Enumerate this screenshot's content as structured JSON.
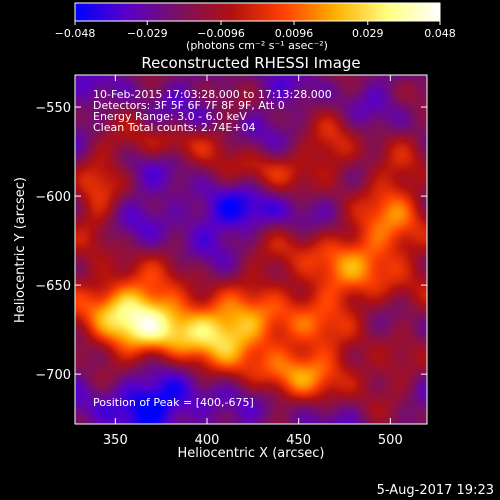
{
  "chart_data": {
    "type": "heatmap",
    "title": "Reconstructed RHESSI Image",
    "xlabel": "Heliocentric X (arcsec)",
    "ylabel": "Heliocentric Y (arcsec)",
    "xlim": [
      328,
      520
    ],
    "ylim": [
      -728,
      -532
    ],
    "x_ticks": [
      350,
      400,
      450,
      500
    ],
    "y_ticks": [
      -550,
      -600,
      -650,
      -700
    ],
    "annotations": [
      "10-Feb-2015 17:03:28.000 to 17:13:28.000",
      "Detectors: 3F 5F 6F 7F 8F 9F, Att 0",
      "Energy Range: 3.0 - 6.0 keV",
      "Clean     Total counts: 2.74E+04"
    ],
    "peak_text": "Position of Peak = [400,-675]",
    "peak": [
      400,
      -675
    ],
    "colorbar": {
      "range": [
        -0.048,
        0.048
      ],
      "tick_values": [
        -0.048,
        -0.029,
        -0.0096,
        0.0096,
        0.029,
        0.048
      ],
      "tick_labels": [
        "−0.048",
        "−0.029",
        "−0.0096",
        "0.0096",
        "0.029",
        "0.048"
      ],
      "label": "(photons cm⁻² s⁻¹ asec⁻²)",
      "colors": [
        "#0000ff",
        "#5a00c8",
        "#7a1060",
        "#b01010",
        "#ff4000",
        "#ffb000",
        "#ffff80",
        "#ffffff"
      ]
    },
    "grid": false
  },
  "footer": {
    "timestamp": "5-Aug-2017 19:23"
  }
}
